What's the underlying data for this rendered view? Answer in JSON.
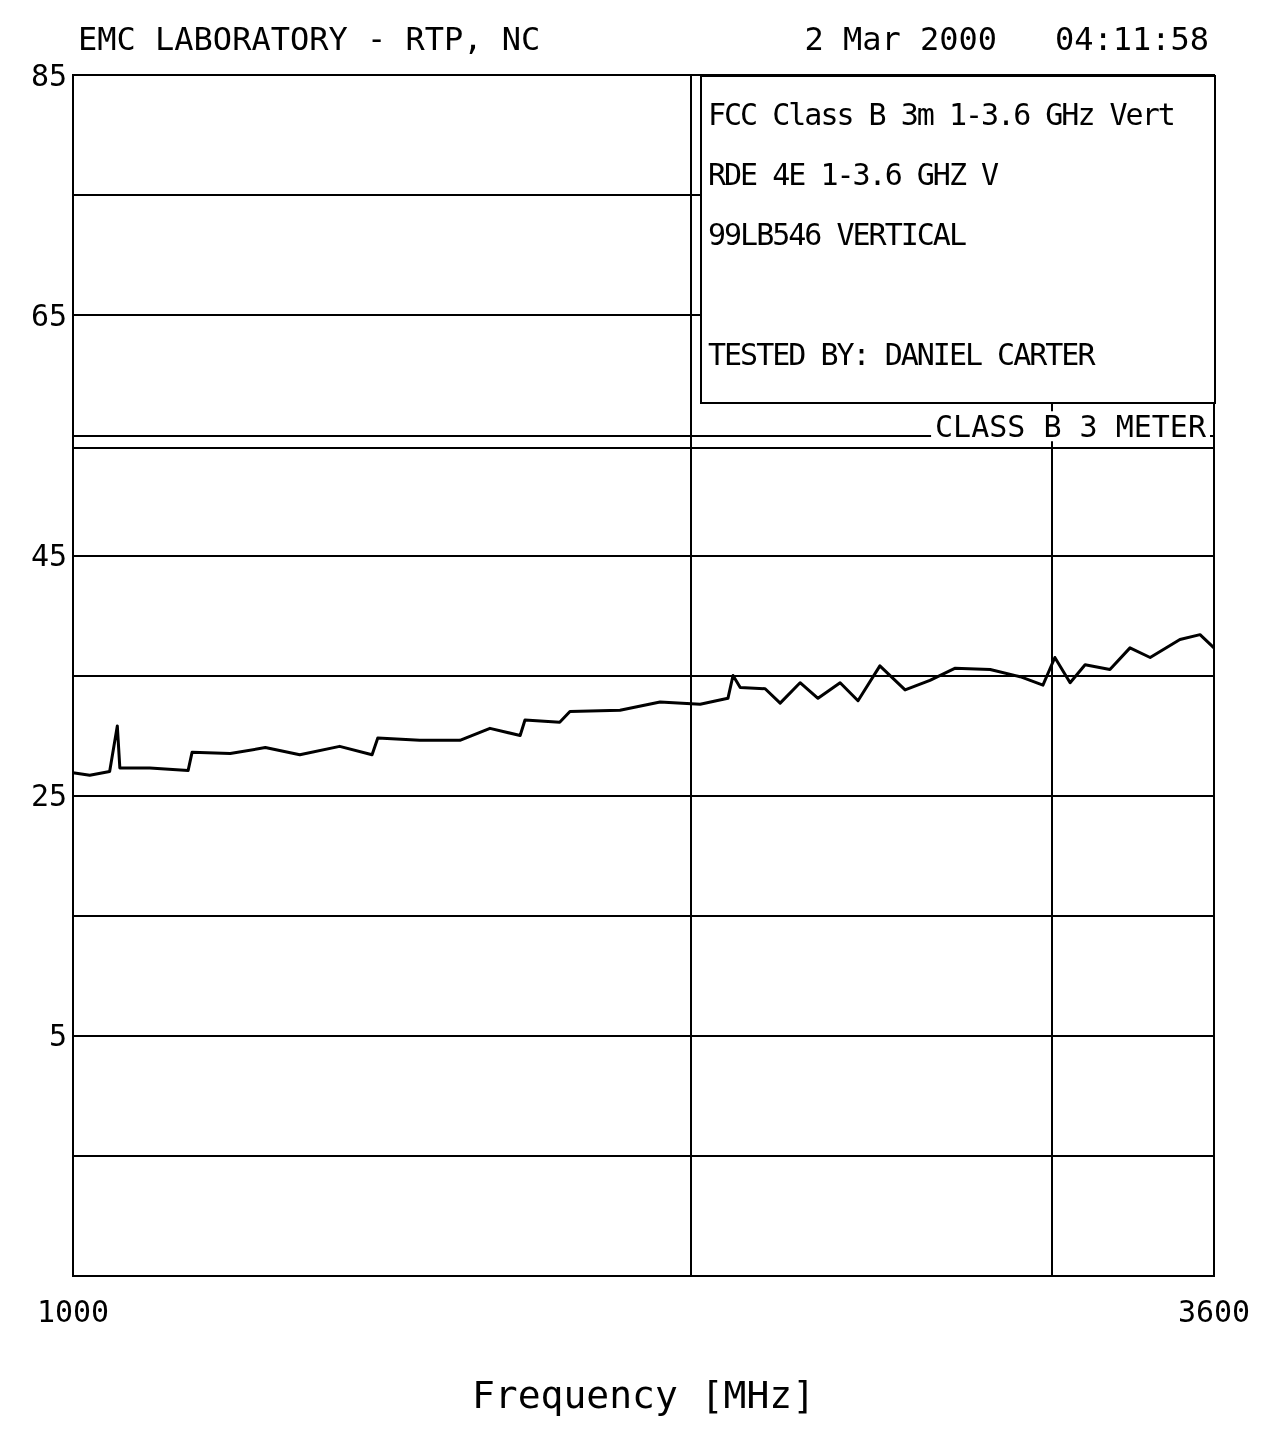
{
  "chart_data": {
    "type": "line",
    "title": "EMC LABORATORY - RTP, NC",
    "subtitle": "2 Mar 2000   04:11:58",
    "xlabel": "Frequency [MHz]",
    "annotations": [
      "FCC Class B 3m 1-3.6 GHz Vert",
      "RDE 4E 1-3.6 GHZ V",
      "99LB546 VERTICAL",
      "TESTED BY: DANIEL CARTER"
    ],
    "x": [
      1000,
      1019,
      1042,
      1051,
      1054,
      1090,
      1138,
      1143,
      1193,
      1241,
      1290,
      1349,
      1399,
      1408,
      1476,
      1544,
      1597,
      1652,
      1661,
      1727,
      1747,
      1848,
      1933,
      2022,
      2086,
      2098,
      2115,
      2175,
      2212,
      2262,
      2308,
      2366,
      2414,
      2474,
      2545,
      2617,
      2691,
      2800,
      2896,
      2971,
      3011,
      3063,
      3115,
      3203,
      3276,
      3351,
      3465,
      3544,
      3600
    ],
    "series": [
      {
        "color": "#000000",
        "values": [
          26.9,
          26.7,
          27.0,
          30.8,
          27.3,
          27.3,
          27.1,
          28.6,
          28.5,
          29.0,
          28.4,
          29.1,
          28.4,
          29.8,
          29.6,
          29.6,
          30.6,
          30.0,
          31.3,
          31.1,
          32.0,
          32.1,
          32.8,
          32.6,
          33.1,
          35.0,
          34.0,
          33.9,
          32.7,
          34.4,
          33.1,
          34.4,
          32.9,
          35.8,
          33.8,
          34.6,
          35.6,
          35.5,
          34.9,
          34.2,
          36.5,
          34.4,
          35.9,
          35.5,
          37.3,
          36.5,
          38.0,
          38.4,
          37.3
        ]
      }
    ],
    "log": "x",
    "xlim": [
      1000,
      3600
    ],
    "xticks": [
      1000,
      {
        "value": 2000,
        "label": null
      },
      {
        "value": 3000,
        "label": null
      },
      3600
    ],
    "ylim": [
      -15,
      85
    ],
    "yticks": [
      {
        "value": -15,
        "label": null
      },
      {
        "value": -5,
        "label": null
      },
      5,
      {
        "value": 15,
        "label": null
      },
      25,
      {
        "value": 35,
        "label": null
      },
      45,
      {
        "value": 55,
        "label": null
      },
      65,
      {
        "value": 75,
        "label": null
      },
      85
    ],
    "ref_lines": [
      {
        "axis": "y",
        "value": 54,
        "label": "CLASS B 3 METER",
        "color": "#000000"
      }
    ],
    "grid": true,
    "marker": "none",
    "line_style": "solid"
  }
}
